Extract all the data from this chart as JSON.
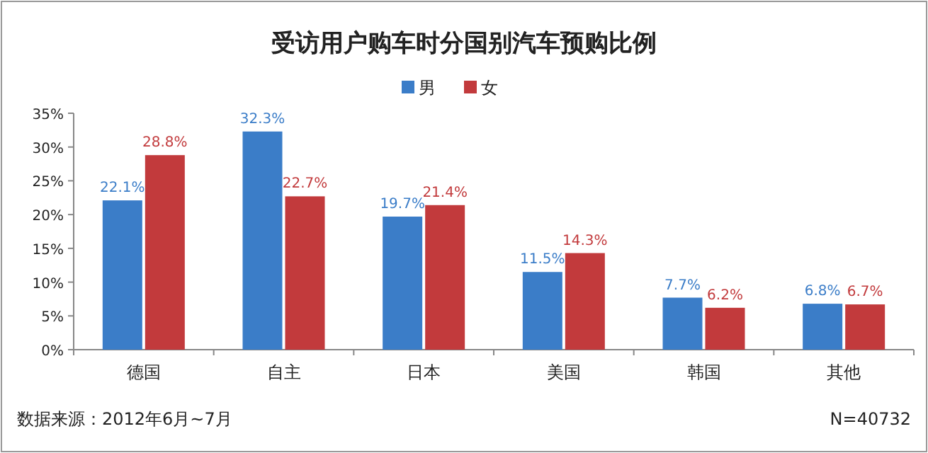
{
  "chart_data": {
    "type": "bar",
    "title": "受访用户购车时分国别汽车预购比例",
    "categories": [
      "德国",
      "自主",
      "日本",
      "美国",
      "韩国",
      "其他"
    ],
    "series": [
      {
        "name": "男",
        "color": "#3b7dc8",
        "values": [
          22.1,
          32.3,
          19.7,
          11.5,
          7.7,
          6.8
        ],
        "value_labels": [
          "22.1%",
          "32.3%",
          "19.7%",
          "11.5%",
          "7.7%",
          "6.8%"
        ]
      },
      {
        "name": "女",
        "color": "#c23a3c",
        "values": [
          28.8,
          22.7,
          21.4,
          14.3,
          6.2,
          6.7
        ],
        "value_labels": [
          "28.8%",
          "22.7%",
          "21.4%",
          "14.3%",
          "6.2%",
          "6.7%"
        ]
      }
    ],
    "ylim": [
      0,
      35
    ],
    "yticks": [
      {
        "value": 0,
        "label": "0%"
      },
      {
        "value": 5,
        "label": "5%"
      },
      {
        "value": 10,
        "label": "10%"
      },
      {
        "value": 15,
        "label": "15%"
      },
      {
        "value": 20,
        "label": "20%"
      },
      {
        "value": 25,
        "label": "25%"
      },
      {
        "value": 30,
        "label": "30%"
      },
      {
        "value": 35,
        "label": "35%"
      }
    ],
    "legend": "top",
    "annotations": [
      "数据来源：2012年6月~7月",
      "N=40732"
    ]
  }
}
